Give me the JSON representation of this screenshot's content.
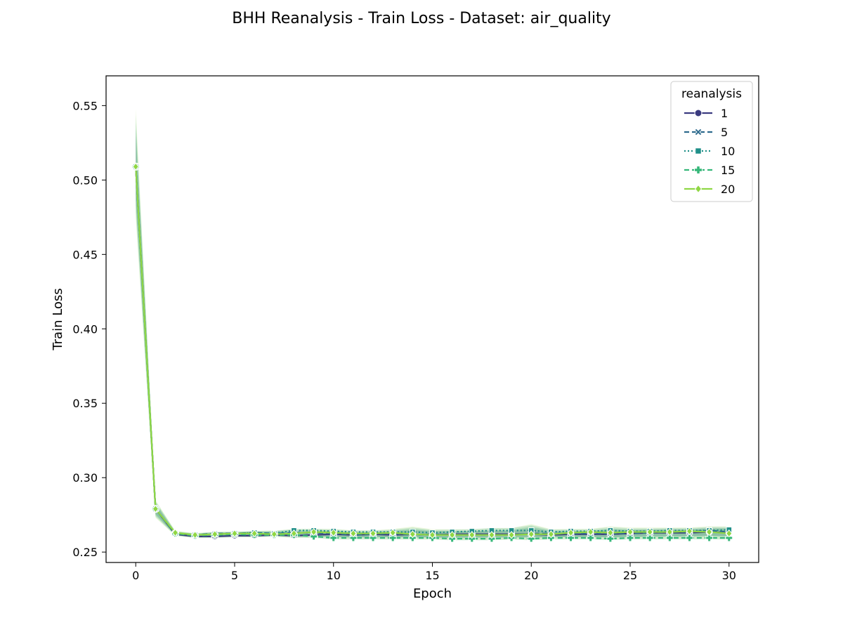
{
  "chart_data": {
    "type": "line",
    "title": "BHH Reanalysis - Train Loss - Dataset: air_quality",
    "xlabel": "Epoch",
    "ylabel": "Train Loss",
    "xlim": [
      -1.5,
      31.5
    ],
    "ylim": [
      0.243,
      0.57
    ],
    "xticks": [
      0,
      5,
      10,
      15,
      20,
      25,
      30
    ],
    "yticks": [
      0.25,
      0.3,
      0.35,
      0.4,
      0.45,
      0.5,
      0.55
    ],
    "grid": false,
    "legend": {
      "title": "reanalysis",
      "position": "top-right"
    },
    "x": [
      0,
      1,
      2,
      3,
      4,
      5,
      6,
      7,
      8,
      9,
      10,
      11,
      12,
      13,
      14,
      15,
      16,
      17,
      18,
      19,
      20,
      21,
      22,
      23,
      24,
      25,
      26,
      27,
      28,
      29,
      30
    ],
    "series": [
      {
        "name": "1",
        "color": "#3b3b80",
        "dash": "solid",
        "marker": "circle",
        "values": [
          0.509,
          0.279,
          0.262,
          0.2605,
          0.2605,
          0.261,
          0.261,
          0.2615,
          0.261,
          0.2615,
          0.262,
          0.2615,
          0.262,
          0.2615,
          0.262,
          0.2615,
          0.262,
          0.262,
          0.262,
          0.262,
          0.262,
          0.2615,
          0.262,
          0.262,
          0.262,
          0.2625,
          0.263,
          0.263,
          0.263,
          0.2635,
          0.263
        ],
        "band": [
          0.468,
          0.272,
          0.262,
          0.26,
          0.26,
          0.26,
          0.26,
          0.26,
          0.259,
          0.26,
          0.26,
          0.259,
          0.26,
          0.259,
          0.259,
          0.259,
          0.259,
          0.259,
          0.259,
          0.259,
          0.259,
          0.259,
          0.259,
          0.259,
          0.259,
          0.259,
          0.26,
          0.26,
          0.26,
          0.26,
          0.26
        ],
        "band_hi": [
          0.555,
          0.286,
          0.264,
          0.263,
          0.263,
          0.264,
          0.264,
          0.265,
          0.265,
          0.265,
          0.266,
          0.265,
          0.265,
          0.266,
          0.268,
          0.266,
          0.266,
          0.266,
          0.267,
          0.267,
          0.27,
          0.266,
          0.266,
          0.266,
          0.268,
          0.267,
          0.267,
          0.267,
          0.267,
          0.268,
          0.268
        ]
      },
      {
        "name": "5",
        "color": "#2e6b8e",
        "dash": "dashed",
        "marker": "x",
        "values": [
          0.509,
          0.279,
          0.2625,
          0.2615,
          0.2625,
          0.2625,
          0.263,
          0.2625,
          0.263,
          0.263,
          0.2625,
          0.2615,
          0.262,
          0.2625,
          0.2615,
          0.262,
          0.2615,
          0.2615,
          0.2615,
          0.2615,
          0.2625,
          0.2625,
          0.2625,
          0.2625,
          0.2625,
          0.2625,
          0.263,
          0.2635,
          0.2635,
          0.2645,
          0.2635
        ]
      },
      {
        "name": "10",
        "color": "#1f8f88",
        "dash": "dotted",
        "marker": "square",
        "values": [
          0.509,
          0.279,
          0.2625,
          0.2615,
          0.262,
          0.2625,
          0.263,
          0.2625,
          0.2645,
          0.2645,
          0.264,
          0.2635,
          0.2635,
          0.2635,
          0.2635,
          0.263,
          0.2635,
          0.264,
          0.2645,
          0.2645,
          0.2645,
          0.2635,
          0.264,
          0.264,
          0.2645,
          0.264,
          0.264,
          0.2645,
          0.2645,
          0.2645,
          0.265
        ]
      },
      {
        "name": "15",
        "color": "#35b779",
        "dash": "dashed",
        "marker": "plus",
        "values": [
          0.509,
          0.279,
          0.2625,
          0.261,
          0.2615,
          0.262,
          0.2615,
          0.2615,
          0.2615,
          0.2605,
          0.2595,
          0.2595,
          0.2595,
          0.2595,
          0.2595,
          0.2595,
          0.259,
          0.259,
          0.259,
          0.2595,
          0.259,
          0.2595,
          0.2595,
          0.2595,
          0.259,
          0.2595,
          0.2595,
          0.2595,
          0.2595,
          0.2595,
          0.2595
        ]
      },
      {
        "name": "20",
        "color": "#8fd744",
        "dash": "solid",
        "marker": "diamond",
        "values": [
          0.509,
          0.279,
          0.263,
          0.2615,
          0.262,
          0.2625,
          0.2625,
          0.262,
          0.2625,
          0.2635,
          0.263,
          0.2625,
          0.2625,
          0.263,
          0.262,
          0.2615,
          0.2615,
          0.2615,
          0.2615,
          0.2615,
          0.262,
          0.262,
          0.263,
          0.2635,
          0.263,
          0.2635,
          0.2635,
          0.2635,
          0.264,
          0.2635,
          0.2625
        ]
      }
    ]
  }
}
